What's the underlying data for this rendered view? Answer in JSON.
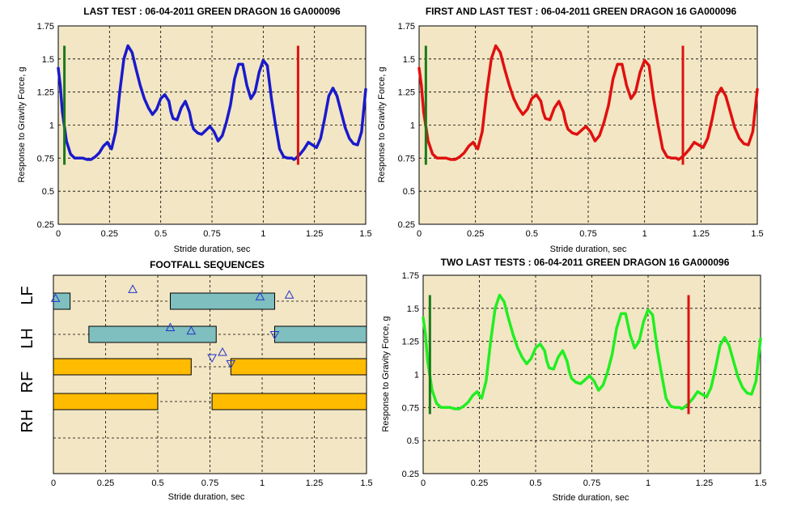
{
  "colors": {
    "plot_background": "#f2e6c4",
    "grid": "#000000",
    "blue_trace": "#1a1acc",
    "red_trace": "#e01010",
    "green_trace": "#22ee22",
    "start_marker": "#1a7a1a",
    "end_marker": "#dd1111",
    "fore_stance_bar": "#7fbfbf",
    "hind_stance_bar": "#ffbb00",
    "event_marker": "#2233cc"
  },
  "charts": [
    {
      "title": "LAST TEST : 06-04-2011 GREEN DRAGON 16 GA000096",
      "xlabel": "Stride duration, sec",
      "ylabel": "Response to Gravity Force, g",
      "xticks": [
        "0",
        "0.25",
        "0.5",
        "0.75",
        "1",
        "1.25",
        "1.5"
      ],
      "yticks": [
        "1.75",
        "1.5",
        "1.25",
        "1",
        "0.75",
        "0.5",
        "0.25"
      ]
    },
    {
      "title": "FIRST AND LAST TEST : 06-04-2011 GREEN DRAGON 16 GA000096",
      "xlabel": "Stride duration,  sec",
      "ylabel": "Response to Gravity Force, g",
      "xticks": [
        "0",
        "0.25",
        "0.5",
        "0.75",
        "1",
        "1.25",
        "1.5"
      ],
      "yticks": [
        "1.75",
        "1.5",
        "1.25",
        "1",
        "0.75",
        "0.5",
        "0.25"
      ]
    },
    {
      "title": "FOOTFALL SEQUENCES",
      "xlabel": "Stride duration, sec",
      "xticks": [
        "0",
        "0.25",
        "0.5",
        "0.75",
        "1",
        "1.25",
        "1.5"
      ],
      "limb_labels": [
        "LF",
        "LH",
        "RF",
        "RH"
      ]
    },
    {
      "title": "TWO LAST TESTS : 06-04-2011 GREEN DRAGON 16 GA000096",
      "xlabel": "Stride duration, sec",
      "ylabel": "Response to Gravity Force, g",
      "xticks": [
        "0",
        "0.25",
        "0.5",
        "0.75",
        "1",
        "1.25",
        "1.5"
      ],
      "yticks": [
        "1.75",
        "1.5",
        "1.25",
        "1",
        "0.75",
        "0.5",
        "0.25"
      ]
    }
  ],
  "chart_data": [
    {
      "type": "line",
      "title": "LAST TEST : 06-04-2011 GREEN DRAGON 16 GA000096",
      "xlabel": "Stride duration, sec",
      "ylabel": "Response to Gravity Force, g",
      "xlim": [
        0,
        1.5
      ],
      "ylim": [
        0.25,
        1.75
      ],
      "grid": true,
      "series": [
        {
          "color": "blue",
          "x": [
            0,
            0.01,
            0.02,
            0.04,
            0.06,
            0.08,
            0.1,
            0.12,
            0.14,
            0.16,
            0.18,
            0.2,
            0.22,
            0.24,
            0.25,
            0.26,
            0.28,
            0.3,
            0.32,
            0.34,
            0.36,
            0.38,
            0.4,
            0.42,
            0.44,
            0.46,
            0.48,
            0.5,
            0.52,
            0.54,
            0.55,
            0.56,
            0.58,
            0.6,
            0.62,
            0.64,
            0.65,
            0.66,
            0.68,
            0.7,
            0.72,
            0.74,
            0.76,
            0.78,
            0.8,
            0.82,
            0.84,
            0.86,
            0.88,
            0.9,
            0.92,
            0.94,
            0.96,
            0.98,
            1.0,
            1.02,
            1.04,
            1.06,
            1.08,
            1.1,
            1.12,
            1.13,
            1.14,
            1.15,
            1.16,
            1.18,
            1.2,
            1.22,
            1.24,
            1.26,
            1.28,
            1.3,
            1.32,
            1.34,
            1.36,
            1.38,
            1.4,
            1.42,
            1.44,
            1.46,
            1.48,
            1.5
          ],
          "y": [
            1.43,
            1.3,
            1.1,
            0.88,
            0.78,
            0.75,
            0.75,
            0.75,
            0.74,
            0.74,
            0.76,
            0.79,
            0.84,
            0.87,
            0.84,
            0.82,
            0.95,
            1.25,
            1.5,
            1.6,
            1.55,
            1.42,
            1.3,
            1.2,
            1.13,
            1.08,
            1.12,
            1.2,
            1.23,
            1.18,
            1.1,
            1.05,
            1.04,
            1.13,
            1.18,
            1.1,
            1.02,
            0.97,
            0.94,
            0.93,
            0.96,
            0.99,
            0.95,
            0.88,
            0.92,
            1.02,
            1.15,
            1.35,
            1.46,
            1.46,
            1.3,
            1.2,
            1.25,
            1.4,
            1.49,
            1.45,
            1.2,
            1.0,
            0.82,
            0.76,
            0.75,
            0.75,
            0.75,
            0.74,
            0.75,
            0.78,
            0.82,
            0.87,
            0.85,
            0.83,
            0.9,
            1.05,
            1.22,
            1.28,
            1.22,
            1.1,
            0.98,
            0.9,
            0.86,
            0.85,
            0.95,
            1.27
          ]
        }
      ],
      "vlines": [
        {
          "x": 0.03,
          "color": "green",
          "ymin": 0.7,
          "ymax": 1.6
        },
        {
          "x": 1.17,
          "color": "red",
          "ymin": 0.7,
          "ymax": 1.6
        }
      ]
    },
    {
      "type": "line",
      "title": "FIRST AND LAST TEST : 06-04-2011 GREEN DRAGON 16 GA000096",
      "xlabel": "Stride duration,  sec",
      "ylabel": "Response to Gravity Force, g",
      "xlim": [
        0,
        1.5
      ],
      "ylim": [
        0.25,
        1.75
      ],
      "grid": true,
      "series": [
        {
          "color": "red",
          "x": [
            0,
            0.01,
            0.02,
            0.04,
            0.06,
            0.08,
            0.1,
            0.12,
            0.14,
            0.16,
            0.18,
            0.2,
            0.22,
            0.24,
            0.25,
            0.26,
            0.28,
            0.3,
            0.32,
            0.34,
            0.36,
            0.38,
            0.4,
            0.42,
            0.44,
            0.46,
            0.48,
            0.5,
            0.52,
            0.54,
            0.55,
            0.56,
            0.58,
            0.6,
            0.62,
            0.64,
            0.65,
            0.66,
            0.68,
            0.7,
            0.72,
            0.74,
            0.76,
            0.78,
            0.8,
            0.82,
            0.84,
            0.86,
            0.88,
            0.9,
            0.92,
            0.94,
            0.96,
            0.98,
            1.0,
            1.02,
            1.04,
            1.06,
            1.08,
            1.1,
            1.12,
            1.13,
            1.14,
            1.15,
            1.16,
            1.18,
            1.2,
            1.22,
            1.24,
            1.26,
            1.28,
            1.3,
            1.32,
            1.34,
            1.36,
            1.38,
            1.4,
            1.42,
            1.44,
            1.46,
            1.48,
            1.5
          ],
          "y": [
            1.43,
            1.3,
            1.1,
            0.88,
            0.78,
            0.75,
            0.75,
            0.75,
            0.74,
            0.74,
            0.76,
            0.79,
            0.84,
            0.87,
            0.84,
            0.82,
            0.95,
            1.25,
            1.5,
            1.6,
            1.55,
            1.42,
            1.3,
            1.2,
            1.13,
            1.08,
            1.12,
            1.2,
            1.23,
            1.18,
            1.1,
            1.05,
            1.04,
            1.13,
            1.18,
            1.1,
            1.02,
            0.97,
            0.94,
            0.93,
            0.96,
            0.99,
            0.95,
            0.88,
            0.92,
            1.02,
            1.15,
            1.35,
            1.46,
            1.46,
            1.3,
            1.2,
            1.25,
            1.4,
            1.49,
            1.45,
            1.2,
            1.0,
            0.82,
            0.76,
            0.75,
            0.75,
            0.75,
            0.74,
            0.75,
            0.78,
            0.82,
            0.87,
            0.85,
            0.83,
            0.9,
            1.05,
            1.22,
            1.28,
            1.22,
            1.1,
            0.98,
            0.9,
            0.86,
            0.85,
            0.95,
            1.27
          ]
        }
      ],
      "vlines": [
        {
          "x": 0.03,
          "color": "green",
          "ymin": 0.7,
          "ymax": 1.6
        },
        {
          "x": 1.17,
          "color": "red",
          "ymin": 0.7,
          "ymax": 1.6
        }
      ]
    },
    {
      "type": "gantt",
      "title": "FOOTFALL SEQUENCES",
      "xlabel": "Stride duration, sec",
      "xlim": [
        0,
        1.5
      ],
      "grid": true,
      "rows": [
        "LF",
        "LH",
        "RF",
        "RH"
      ],
      "bars": [
        {
          "row": "LF",
          "start": 0.0,
          "end": 0.08
        },
        {
          "row": "LF",
          "start": 0.56,
          "end": 1.06
        },
        {
          "row": "LH",
          "start": 0.17,
          "end": 0.78
        },
        {
          "row": "LH",
          "start": 1.06,
          "end": 1.5
        },
        {
          "row": "RF",
          "start": 0.0,
          "end": 0.66
        },
        {
          "row": "RF",
          "start": 0.85,
          "end": 1.5
        },
        {
          "row": "RH",
          "start": 0.0,
          "end": 0.5
        },
        {
          "row": "RH",
          "start": 0.76,
          "end": 1.5
        }
      ],
      "markers": [
        {
          "x": 0.01,
          "row": 0.4,
          "direction": "up"
        },
        {
          "x": 0.38,
          "row": 0.13,
          "direction": "up"
        },
        {
          "x": 0.99,
          "row": 0.35,
          "direction": "up"
        },
        {
          "x": 1.13,
          "row": 0.3,
          "direction": "up"
        },
        {
          "x": 0.56,
          "row": 1.28,
          "direction": "up"
        },
        {
          "x": 0.66,
          "row": 1.38,
          "direction": "up"
        },
        {
          "x": 1.06,
          "row": 1.5,
          "direction": "down"
        },
        {
          "x": 0.76,
          "row": 2.22,
          "direction": "down"
        },
        {
          "x": 0.81,
          "row": 2.05,
          "direction": "up"
        },
        {
          "x": 0.85,
          "row": 2.4,
          "direction": "down"
        }
      ]
    },
    {
      "type": "line",
      "title": "TWO LAST TESTS : 06-04-2011 GREEN DRAGON 16 GA000096",
      "xlabel": "Stride duration, sec",
      "ylabel": "Response to Gravity Force, g",
      "xlim": [
        0,
        1.5
      ],
      "ylim": [
        0.25,
        1.75
      ],
      "grid": true,
      "series": [
        {
          "color": "green",
          "x": [
            0,
            0.01,
            0.02,
            0.04,
            0.06,
            0.08,
            0.1,
            0.12,
            0.14,
            0.16,
            0.18,
            0.2,
            0.22,
            0.24,
            0.25,
            0.26,
            0.28,
            0.3,
            0.32,
            0.34,
            0.36,
            0.38,
            0.4,
            0.42,
            0.44,
            0.46,
            0.48,
            0.5,
            0.52,
            0.54,
            0.55,
            0.56,
            0.58,
            0.6,
            0.62,
            0.64,
            0.65,
            0.66,
            0.68,
            0.7,
            0.72,
            0.74,
            0.76,
            0.78,
            0.8,
            0.82,
            0.84,
            0.86,
            0.88,
            0.9,
            0.92,
            0.94,
            0.96,
            0.98,
            1.0,
            1.02,
            1.04,
            1.06,
            1.08,
            1.1,
            1.12,
            1.13,
            1.14,
            1.15,
            1.16,
            1.18,
            1.2,
            1.22,
            1.24,
            1.26,
            1.28,
            1.3,
            1.32,
            1.34,
            1.36,
            1.38,
            1.4,
            1.42,
            1.44,
            1.46,
            1.48,
            1.5
          ],
          "y": [
            1.43,
            1.3,
            1.1,
            0.88,
            0.78,
            0.75,
            0.75,
            0.75,
            0.74,
            0.74,
            0.76,
            0.79,
            0.84,
            0.87,
            0.84,
            0.82,
            0.95,
            1.25,
            1.5,
            1.6,
            1.55,
            1.42,
            1.3,
            1.2,
            1.13,
            1.08,
            1.12,
            1.2,
            1.23,
            1.18,
            1.1,
            1.05,
            1.04,
            1.13,
            1.18,
            1.1,
            1.02,
            0.97,
            0.94,
            0.93,
            0.96,
            0.99,
            0.95,
            0.88,
            0.92,
            1.02,
            1.15,
            1.35,
            1.46,
            1.46,
            1.3,
            1.2,
            1.25,
            1.4,
            1.49,
            1.45,
            1.2,
            1.0,
            0.82,
            0.76,
            0.75,
            0.75,
            0.75,
            0.74,
            0.75,
            0.78,
            0.82,
            0.87,
            0.85,
            0.83,
            0.9,
            1.05,
            1.22,
            1.28,
            1.22,
            1.1,
            0.98,
            0.9,
            0.86,
            0.85,
            0.95,
            1.27
          ]
        }
      ],
      "vlines": [
        {
          "x": 0.03,
          "color": "green",
          "ymin": 0.7,
          "ymax": 1.6
        },
        {
          "x": 1.18,
          "color": "red",
          "ymin": 0.7,
          "ymax": 1.6
        }
      ]
    }
  ]
}
